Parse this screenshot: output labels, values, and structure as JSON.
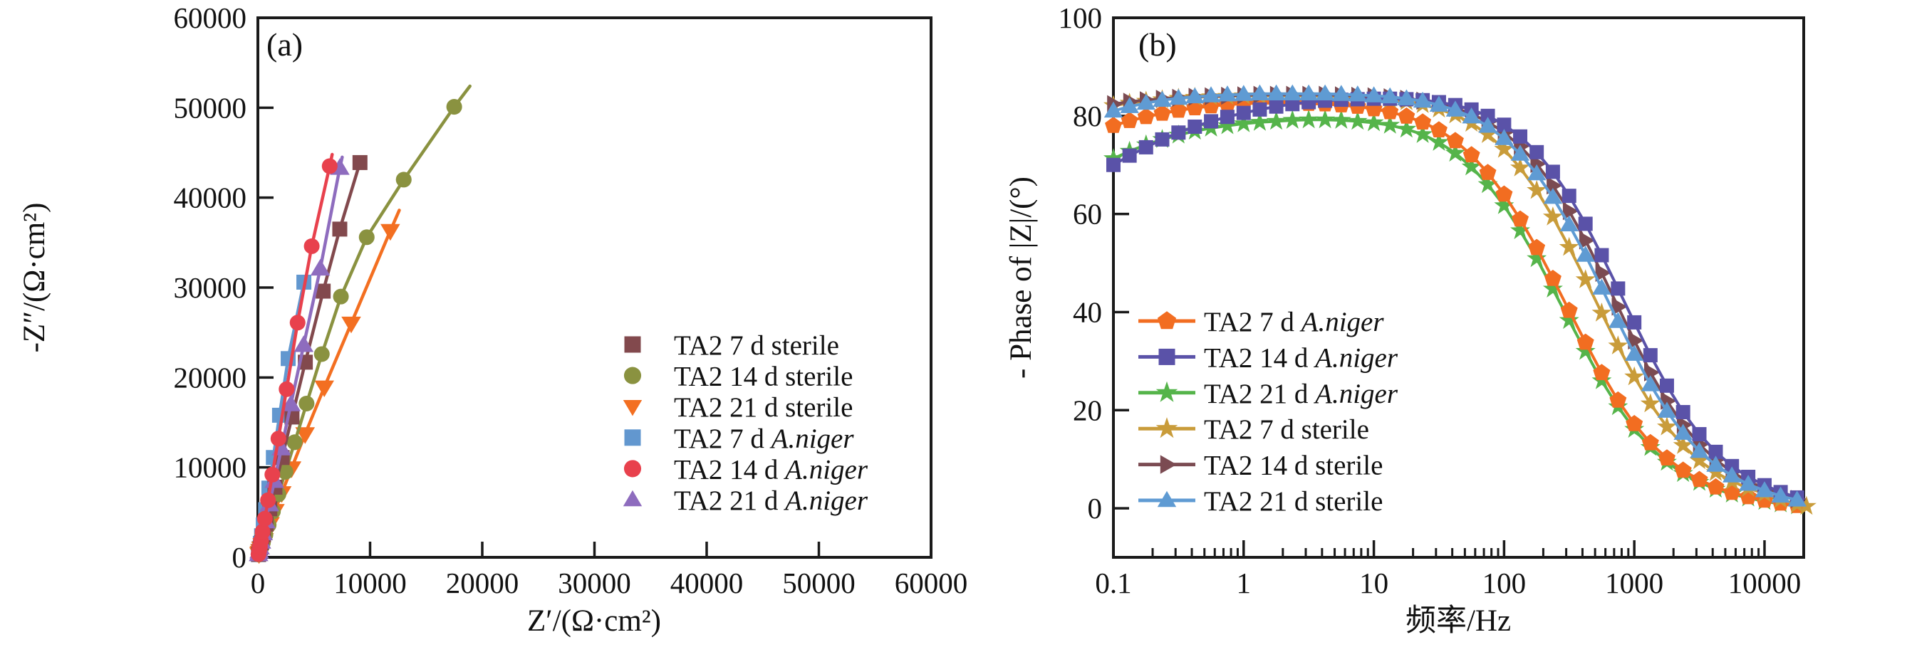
{
  "figure": {
    "background": "#ffffff",
    "axis_color": "#1a1a1a"
  },
  "chart_data": [
    {
      "type": "scatter",
      "panel_label": "(a)",
      "xlabel": "Z′/(Ω·cm²)",
      "ylabel": "-Z″/(Ω·cm²)",
      "xlim": [
        0,
        60000
      ],
      "ylim": [
        0,
        60000
      ],
      "grid": false,
      "legend_position": "center-right-inside",
      "ticks": {
        "x": [
          0,
          10000,
          20000,
          30000,
          40000,
          50000,
          60000
        ],
        "y": [
          0,
          10000,
          20000,
          30000,
          40000,
          50000,
          60000
        ]
      },
      "tick_labels": {
        "x": [
          "0",
          "10000",
          "20000",
          "30000",
          "40000",
          "50000",
          "60000"
        ],
        "y": [
          "0",
          "10000",
          "20000",
          "30000",
          "40000",
          "50000",
          "60000"
        ]
      },
      "draw_order": [
        3,
        2,
        1,
        0,
        5,
        4
      ],
      "series": [
        {
          "label_prefix": "TA2 7 d sterile",
          "label_italic": "",
          "color": "#82494d",
          "marker": "square",
          "points": [
            [
              70,
              320
            ],
            [
              130,
              620
            ],
            [
              220,
              1050
            ],
            [
              340,
              1650
            ],
            [
              500,
              2500
            ],
            [
              730,
              3700
            ],
            [
              1060,
              5400
            ],
            [
              1520,
              7800
            ],
            [
              2160,
              11100
            ],
            [
              3040,
              15600
            ],
            [
              4230,
              21700
            ],
            [
              5820,
              29600
            ],
            [
              7300,
              36500
            ],
            [
              9100,
              43900
            ]
          ],
          "tail_no_marker": false
        },
        {
          "label_prefix": "TA2 14 d sterile",
          "label_italic": "",
          "color": "#8a9240",
          "marker": "circle",
          "points": [
            [
              90,
              300
            ],
            [
              170,
              600
            ],
            [
              290,
              1050
            ],
            [
              450,
              1650
            ],
            [
              670,
              2500
            ],
            [
              960,
              3600
            ],
            [
              1340,
              5100
            ],
            [
              1830,
              7000
            ],
            [
              2460,
              9500
            ],
            [
              3280,
              12800
            ],
            [
              4340,
              17100
            ],
            [
              5700,
              22600
            ],
            [
              7400,
              29000
            ],
            [
              9700,
              35600
            ],
            [
              13000,
              42000
            ],
            [
              17500,
              50100
            ],
            [
              18900,
              52400
            ]
          ],
          "tail_no_marker": true
        },
        {
          "label_prefix": "TA2 21 d sterile",
          "label_italic": "",
          "color": "#f36f21",
          "marker": "triangle-down",
          "points": [
            [
              100,
              360
            ],
            [
              140,
              500
            ],
            [
              200,
              710
            ],
            [
              280,
              990
            ],
            [
              390,
              1370
            ],
            [
              550,
              1920
            ],
            [
              770,
              2670
            ],
            [
              1080,
              3710
            ],
            [
              1520,
              5170
            ],
            [
              2130,
              7150
            ],
            [
              3000,
              9900
            ],
            [
              4210,
              13700
            ],
            [
              5920,
              18900
            ],
            [
              8320,
              26000
            ],
            [
              11800,
              36300
            ],
            [
              12600,
              38600
            ]
          ],
          "tail_no_marker": true
        },
        {
          "label_prefix": "TA2 7 d ",
          "label_italic": "A.niger",
          "color": "#6297cf",
          "marker": "square",
          "points": [
            [
              45,
              300
            ],
            [
              85,
              580
            ],
            [
              140,
              980
            ],
            [
              220,
              1550
            ],
            [
              330,
              2400
            ],
            [
              480,
              3600
            ],
            [
              690,
              5300
            ],
            [
              980,
              7700
            ],
            [
              1380,
              11100
            ],
            [
              1930,
              15800
            ],
            [
              2700,
              22100
            ],
            [
              4100,
              30600
            ]
          ],
          "tail_no_marker": false
        },
        {
          "label_prefix": "TA2 14 d ",
          "label_italic": "A.niger",
          "color": "#e8414d",
          "marker": "circle",
          "points": [
            [
              60,
              350
            ],
            [
              110,
              680
            ],
            [
              180,
              1150
            ],
            [
              280,
              1850
            ],
            [
              420,
              2850
            ],
            [
              620,
              4300
            ],
            [
              900,
              6350
            ],
            [
              1290,
              9200
            ],
            [
              1830,
              13200
            ],
            [
              2560,
              18700
            ],
            [
              3540,
              26100
            ],
            [
              4800,
              34600
            ],
            [
              6400,
              43500
            ],
            [
              6620,
              44800
            ]
          ],
          "tail_no_marker": true
        },
        {
          "label_prefix": "TA2 21 d ",
          "label_italic": "A.niger",
          "color": "#8e6cbe",
          "marker": "triangle-up",
          "points": [
            [
              65,
              330
            ],
            [
              120,
              640
            ],
            [
              200,
              1080
            ],
            [
              310,
              1730
            ],
            [
              470,
              2660
            ],
            [
              700,
              3990
            ],
            [
              1020,
              5870
            ],
            [
              1470,
              8480
            ],
            [
              2090,
              12100
            ],
            [
              2940,
              17000
            ],
            [
              4080,
              23600
            ],
            [
              5560,
              32100
            ],
            [
              7300,
              43300
            ],
            [
              7520,
              44500
            ]
          ],
          "tail_no_marker": true
        }
      ]
    },
    {
      "type": "line",
      "panel_label": "(b)",
      "xlabel": "频率/Hz",
      "ylabel": "- Phase of |Z|/(°)",
      "xscale": "log",
      "xlim": [
        0.1,
        20000
      ],
      "ylim": [
        -10,
        100
      ],
      "grid": false,
      "legend_position": "bottom-left-inside",
      "ticks": {
        "x": [
          0.1,
          1,
          10,
          100,
          1000,
          10000
        ],
        "y": [
          0,
          20,
          40,
          60,
          80,
          100
        ]
      },
      "tick_labels": {
        "x": [
          "0.1",
          "1",
          "10",
          "100",
          "1000",
          "10000"
        ],
        "y": [
          "0",
          "20",
          "40",
          "60",
          "80",
          "100"
        ]
      },
      "draw_order": [
        2,
        0,
        3,
        4,
        1,
        5
      ],
      "freqs": [
        0.1,
        0.133,
        0.178,
        0.237,
        0.316,
        0.422,
        0.562,
        0.75,
        1,
        1.33,
        1.78,
        2.37,
        3.16,
        4.22,
        5.62,
        7.5,
        10,
        13.3,
        17.8,
        23.7,
        31.6,
        42.2,
        56.2,
        75,
        100,
        133,
        178,
        237,
        316,
        422,
        562,
        750,
        1000,
        1330,
        1780,
        2370,
        3160,
        4220,
        5620,
        7500,
        10000,
        13300,
        17800,
        21000
      ],
      "series": [
        {
          "label_prefix": "TA2 7 d ",
          "label_italic": "A.niger",
          "color": "#f26d21",
          "marker": "pentagon",
          "phase": [
            78.0,
            79.0,
            79.8,
            80.5,
            81.1,
            81.6,
            82.0,
            82.3,
            82.5,
            82.6,
            82.6,
            82.6,
            82.5,
            82.4,
            82.2,
            81.9,
            81.4,
            80.8,
            79.9,
            78.7,
            77.1,
            74.9,
            72.0,
            68.4,
            64.0,
            58.9,
            53.1,
            46.8,
            40.3,
            33.8,
            27.6,
            22.0,
            17.2,
            13.3,
            10.2,
            7.7,
            5.8,
            4.3,
            3.2,
            2.3,
            1.6,
            1.0,
            0.5,
            null
          ]
        },
        {
          "label_prefix": "TA2 14 d ",
          "label_italic": "A.niger",
          "color": "#5a52a8",
          "marker": "square",
          "phase": [
            70.0,
            71.9,
            73.6,
            75.2,
            76.6,
            77.8,
            78.9,
            79.8,
            80.6,
            81.3,
            81.9,
            82.4,
            82.8,
            83.1,
            83.3,
            83.4,
            83.5,
            83.5,
            83.4,
            83.2,
            82.8,
            82.2,
            81.3,
            80.0,
            78.2,
            75.8,
            72.6,
            68.6,
            63.7,
            58.0,
            51.6,
            44.8,
            37.9,
            31.2,
            25.0,
            19.6,
            15.1,
            11.5,
            8.6,
            6.4,
            4.7,
            3.3,
            2.2,
            null
          ]
        },
        {
          "label_prefix": "TA2 21 d ",
          "label_italic": "A.niger",
          "color": "#55b44a",
          "marker": "star",
          "phase": [
            71.3,
            72.8,
            74.1,
            75.2,
            76.1,
            76.9,
            77.5,
            78.0,
            78.4,
            78.7,
            78.9,
            79.1,
            79.2,
            79.2,
            79.1,
            78.9,
            78.6,
            78.1,
            77.3,
            76.2,
            74.6,
            72.4,
            69.6,
            66.0,
            61.7,
            56.6,
            50.9,
            44.7,
            38.3,
            32.0,
            26.0,
            20.7,
            16.1,
            12.4,
            9.4,
            7.1,
            5.3,
            3.9,
            2.9,
            2.1,
            1.4,
            0.9,
            0.5,
            null
          ]
        },
        {
          "label_prefix": "TA2 7 d sterile",
          "label_italic": "",
          "color": "#c99c3a",
          "marker": "star",
          "phase": [
            82.1,
            82.6,
            83.0,
            83.3,
            83.6,
            83.8,
            83.9,
            84.0,
            84.1,
            84.1,
            84.1,
            84.1,
            84.1,
            84.0,
            83.9,
            83.8,
            83.6,
            83.3,
            82.9,
            82.3,
            81.4,
            80.2,
            78.5,
            76.2,
            73.2,
            69.4,
            64.8,
            59.4,
            53.2,
            46.6,
            39.8,
            33.1,
            26.8,
            21.3,
            16.6,
            12.8,
            9.7,
            7.3,
            5.5,
            4.1,
            3.0,
            1.8,
            0.8,
            0.4
          ]
        },
        {
          "label_prefix": "TA2 14 d sterile",
          "label_italic": "",
          "color": "#7b4b52",
          "marker": "triangle-right",
          "phase": [
            82.4,
            82.9,
            83.2,
            83.5,
            83.7,
            83.9,
            84.0,
            84.1,
            84.2,
            84.3,
            84.3,
            84.3,
            84.3,
            84.3,
            84.2,
            84.1,
            84.0,
            83.8,
            83.5,
            83.1,
            82.5,
            81.6,
            80.4,
            78.8,
            76.6,
            73.8,
            70.2,
            65.8,
            60.6,
            54.6,
            48.0,
            41.1,
            34.2,
            27.7,
            21.9,
            17.0,
            13.0,
            9.9,
            7.4,
            5.5,
            4.1,
            2.9,
            1.9,
            null
          ]
        },
        {
          "label_prefix": "TA2 21 d sterile",
          "label_italic": "",
          "color": "#5f9bd3",
          "marker": "triangle-up",
          "phase": [
            81.0,
            81.9,
            82.6,
            83.2,
            83.6,
            83.9,
            84.1,
            84.3,
            84.4,
            84.5,
            84.5,
            84.5,
            84.5,
            84.5,
            84.4,
            84.3,
            84.1,
            83.9,
            83.5,
            83.0,
            82.2,
            81.2,
            79.8,
            77.9,
            75.4,
            72.2,
            68.2,
            63.4,
            57.8,
            51.6,
            44.9,
            38.1,
            31.4,
            25.2,
            19.8,
            15.3,
            11.6,
            8.8,
            6.6,
            4.9,
            3.6,
            2.5,
            1.7,
            null
          ]
        }
      ]
    }
  ]
}
